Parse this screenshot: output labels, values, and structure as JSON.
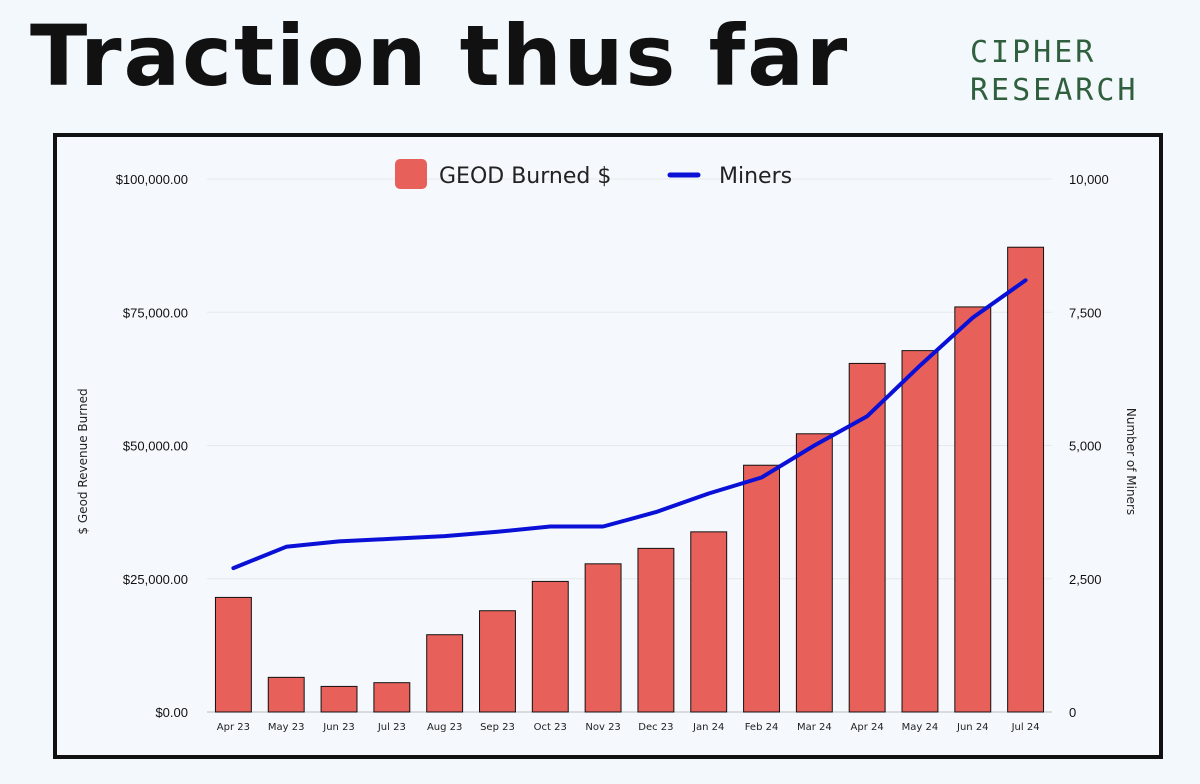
{
  "header": {
    "title": "Traction thus far",
    "brand_line1": "CIPHER",
    "brand_line2": "RESEARCH"
  },
  "colors": {
    "bar": "#e8605a",
    "line": "#0a10d6",
    "brand": "#2f5f3d"
  },
  "chart_data": {
    "type": "bar",
    "categories": [
      "Apr 23",
      "May 23",
      "Jun 23",
      "Jul 23",
      "Aug 23",
      "Sep 23",
      "Oct 23",
      "Nov 23",
      "Dec 23",
      "Jan 24",
      "Feb 24",
      "Mar 24",
      "Apr 24",
      "May 24",
      "Jun 24",
      "Jul 24"
    ],
    "series": [
      {
        "name": "GEOD Burned $",
        "type": "bar",
        "axis": "left",
        "values": [
          21500,
          6500,
          4800,
          5500,
          14500,
          19000,
          24500,
          27800,
          30700,
          33800,
          46300,
          52200,
          65400,
          67800,
          76000,
          87200
        ]
      },
      {
        "name": "Miners",
        "type": "line",
        "axis": "right",
        "values": [
          2700,
          3100,
          3200,
          3250,
          3300,
          3380,
          3480,
          3480,
          3750,
          4100,
          4400,
          5000,
          5550,
          6500,
          7400,
          8100
        ]
      }
    ],
    "ylabel": "$ Geod Revenue Burned",
    "y2label": "Number of Miners",
    "ylim": [
      0,
      100000
    ],
    "y2lim": [
      0,
      10000
    ],
    "yticks": [
      "$0.00",
      "$25,000.00",
      "$50,000.00",
      "$75,000.00",
      "$100,000.00"
    ],
    "y2ticks": [
      "0",
      "2,500",
      "5,000",
      "7,500",
      "10,000"
    ],
    "legend": "top-center",
    "grid": true
  }
}
